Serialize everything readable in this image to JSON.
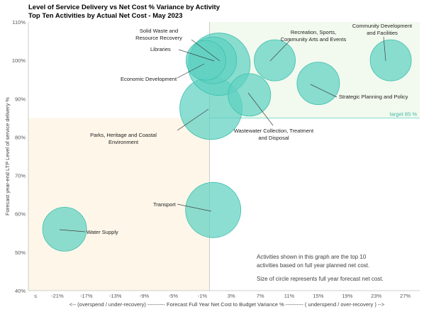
{
  "chart_data": {
    "type": "bubble",
    "title": "Level of Service Delivery vs Net Cost % Variance by Activity",
    "subtitle": "Top Ten Activities by Actual  Net Cost - May 2023",
    "ylabel": "Forecast year-end LTP Level of service delivery %",
    "xlabel": "<-- (overspend / under-recovery) ---------- Forecast Full Year Net Cost to Budget Variance % ---------- ( underspend / over-recovery ) -->",
    "xlim": [
      -25,
      29
    ],
    "ylim": [
      40,
      110
    ],
    "x_ticks": [
      "≤",
      "-21%",
      "-17%",
      "-13%",
      "-9%",
      "-5%",
      "-1%",
      "3%",
      "7%",
      "11%",
      "15%",
      "19%",
      "23%",
      "27%"
    ],
    "y_ticks": [
      "40%",
      "50%",
      "60%",
      "70%",
      "80%",
      "90%",
      "100%",
      "110%"
    ],
    "target": {
      "value": 85,
      "label": "target 85 %"
    },
    "notes": [
      "Activities shown in this graph are the top 10",
      "activities based on full year planned net cost.",
      "Size of circle represents full year forecast net cost."
    ],
    "points": [
      {
        "name": "Parks, Heritage and Coastal Environment",
        "label_lines": [
          "Parks, Heritage and Coastal",
          "Environment"
        ],
        "x": 0.2,
        "y": 87.5,
        "size": 44
      },
      {
        "name": "Solid Waste and Resource Recovery",
        "label_lines": [
          "Solid Waste and",
          "Resource Recovery"
        ],
        "x": 1.3,
        "y": 99,
        "size": 44
      },
      {
        "name": "Libraries",
        "label_lines": [
          "Libraries"
        ],
        "x": 0.5,
        "y": 100,
        "size": 33
      },
      {
        "name": "Economic Development",
        "label_lines": [
          "Economic Development"
        ],
        "x": -0.5,
        "y": 100,
        "size": 28
      },
      {
        "name": "Wastewater Collection, Treatment and Disposal",
        "label_lines": [
          "Wastewater Collection, Treatment",
          "and Disposal"
        ],
        "x": 5.5,
        "y": 91,
        "size": 30
      },
      {
        "name": "Recreation, Sports, Community Arts and Events",
        "label_lines": [
          "Recreation, Sports,",
          "Community Arts and Events"
        ],
        "x": 9,
        "y": 100,
        "size": 29
      },
      {
        "name": "Community Development and Facilities",
        "label_lines": [
          "Community Development",
          "and Facilities"
        ],
        "x": 25,
        "y": 100,
        "size": 29
      },
      {
        "name": "Strategic Planning and Policy",
        "label_lines": [
          "Strategic Planning and Policy"
        ],
        "x": 15,
        "y": 94,
        "size": 30
      },
      {
        "name": "Transport",
        "label_lines": [
          "Transport"
        ],
        "x": 0.5,
        "y": 61,
        "size": 39
      },
      {
        "name": "Water Supply",
        "label_lines": [
          "Water Supply"
        ],
        "x": -20,
        "y": 56,
        "size": 31
      }
    ],
    "colors": {
      "bubble_fill": "#5fd1c2",
      "bubble_stroke": "#3bbfae",
      "lower_left_quadrant": "#fdf6e9",
      "upper_right_quadrant": "#f2f9ee",
      "target_line": "#5fd1c2"
    },
    "grid": false
  }
}
